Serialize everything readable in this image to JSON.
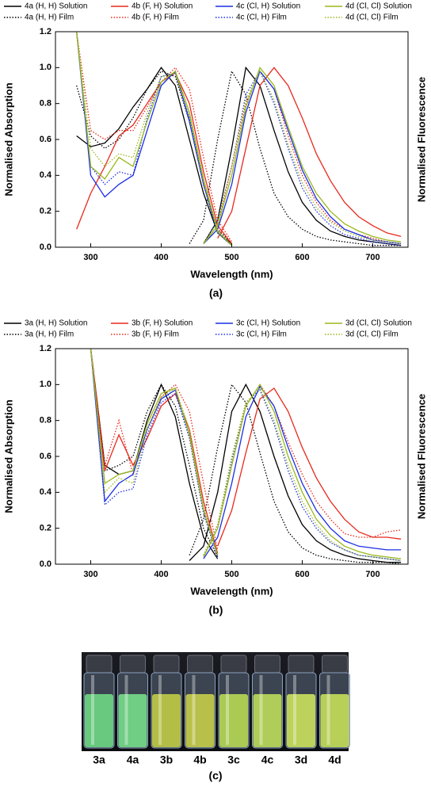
{
  "chart_data": [
    {
      "type": "line",
      "xlabel": "Wavelength (nm)",
      "ylabel": "Normalised Absorption",
      "y2label": "Normalised Fluorescence",
      "caption": "(a)",
      "x": [
        280,
        300,
        320,
        340,
        360,
        380,
        400,
        420,
        440,
        460,
        480,
        500,
        520,
        540,
        560,
        580,
        600,
        620,
        640,
        660,
        680,
        700,
        720,
        740
      ],
      "xlim": [
        250,
        750
      ],
      "xticks": [
        300,
        400,
        500,
        600,
        700
      ],
      "ylim": [
        0,
        1.2
      ],
      "yticks": [
        {
          "value": 0,
          "label": "0.0"
        },
        0.2,
        0.4,
        0.6,
        0.8,
        {
          "value": 1,
          "label": "1.0"
        },
        1.2
      ],
      "series": [
        {
          "name": "4a (H, H) Solution",
          "color": "#000000",
          "dash": "solid",
          "absorption": [
            0.62,
            0.56,
            0.58,
            0.66,
            0.78,
            0.88,
            1.0,
            0.9,
            0.6,
            0.3,
            0.08,
            0.02,
            null,
            null,
            null,
            null,
            null,
            null,
            null,
            null,
            null,
            null,
            null,
            null
          ],
          "fluorescence": [
            null,
            null,
            null,
            null,
            null,
            null,
            null,
            null,
            null,
            0.02,
            0.15,
            0.55,
            1.0,
            0.9,
            0.65,
            0.42,
            0.25,
            0.15,
            0.09,
            0.06,
            0.04,
            0.03,
            0.02,
            0.01
          ]
        },
        {
          "name": "4a (H, H) Film",
          "color": "#000000",
          "dash": "dotted",
          "absorption": [
            0.9,
            0.62,
            0.55,
            0.6,
            0.72,
            0.88,
            0.98,
            0.95,
            0.7,
            0.35,
            0.1,
            0.02,
            null,
            null,
            null,
            null,
            null,
            null,
            null,
            null,
            null,
            null,
            null,
            null
          ],
          "fluorescence": [
            null,
            null,
            null,
            null,
            null,
            null,
            null,
            null,
            0.02,
            0.15,
            0.6,
            0.98,
            0.85,
            0.55,
            0.3,
            0.17,
            0.1,
            0.06,
            0.04,
            0.03,
            0.02,
            0.01,
            0.01,
            0.01
          ]
        },
        {
          "name": "4b (F, H) Solution",
          "color": "#e8291c",
          "dash": "solid",
          "absorption": [
            0.1,
            0.3,
            0.45,
            0.62,
            0.68,
            0.8,
            0.92,
            0.97,
            0.8,
            0.42,
            0.12,
            0.02,
            null,
            null,
            null,
            null,
            null,
            null,
            null,
            null,
            null,
            null,
            null,
            null
          ],
          "fluorescence": [
            null,
            null,
            null,
            null,
            null,
            null,
            null,
            null,
            null,
            null,
            0.05,
            0.2,
            0.55,
            0.9,
            1.0,
            0.9,
            0.72,
            0.52,
            0.37,
            0.25,
            0.17,
            0.12,
            0.08,
            0.06
          ]
        },
        {
          "name": "4b (F, H) Film",
          "color": "#e8291c",
          "dash": "dotted",
          "absorption": [
            1.2,
            0.65,
            0.6,
            0.65,
            0.65,
            0.78,
            0.92,
            1.0,
            0.88,
            0.5,
            0.15,
            0.03,
            null,
            null,
            null,
            null,
            null,
            null,
            null,
            null,
            null,
            null,
            null,
            null
          ],
          "fluorescence": [
            null,
            null,
            null,
            null,
            null,
            null,
            null,
            null,
            null,
            0.02,
            0.12,
            0.45,
            0.8,
            0.98,
            0.88,
            0.62,
            0.4,
            0.25,
            0.15,
            0.1,
            0.07,
            0.05,
            0.03,
            0.02
          ]
        },
        {
          "name": "4c (Cl, H) Solution",
          "color": "#1a2ee6",
          "dash": "solid",
          "absorption": [
            1.2,
            0.4,
            0.28,
            0.35,
            0.4,
            0.65,
            0.9,
            0.98,
            0.7,
            0.35,
            0.08,
            0.01,
            null,
            null,
            null,
            null,
            null,
            null,
            null,
            null,
            null,
            null,
            null,
            null
          ],
          "fluorescence": [
            null,
            null,
            null,
            null,
            null,
            null,
            null,
            null,
            null,
            0.02,
            0.1,
            0.35,
            0.75,
            0.98,
            0.88,
            0.65,
            0.43,
            0.27,
            0.17,
            0.1,
            0.07,
            0.04,
            0.03,
            0.02
          ]
        },
        {
          "name": "4c (Cl, H) Film",
          "color": "#1a2ee6",
          "dash": "dotted",
          "absorption": [
            1.2,
            0.45,
            0.35,
            0.42,
            0.4,
            0.72,
            0.95,
            0.97,
            0.72,
            0.35,
            0.08,
            0.01,
            null,
            null,
            null,
            null,
            null,
            null,
            null,
            null,
            null,
            null,
            null,
            null
          ],
          "fluorescence": [
            null,
            null,
            null,
            null,
            null,
            null,
            null,
            null,
            null,
            0.02,
            0.15,
            0.45,
            0.85,
            0.98,
            0.8,
            0.55,
            0.33,
            0.2,
            0.12,
            0.07,
            0.05,
            0.03,
            0.02,
            0.01
          ]
        },
        {
          "name": "4d (Cl, Cl) Solution",
          "color": "#9ab81e",
          "dash": "solid",
          "absorption": [
            1.2,
            0.45,
            0.38,
            0.5,
            0.45,
            0.7,
            0.92,
            0.98,
            0.75,
            0.38,
            0.09,
            0.01,
            null,
            null,
            null,
            null,
            null,
            null,
            null,
            null,
            null,
            null,
            null,
            null
          ],
          "fluorescence": [
            null,
            null,
            null,
            null,
            null,
            null,
            null,
            null,
            null,
            0.02,
            0.12,
            0.4,
            0.78,
            1.0,
            0.9,
            0.67,
            0.45,
            0.3,
            0.2,
            0.13,
            0.09,
            0.06,
            0.04,
            0.03
          ]
        },
        {
          "name": "4d (Cl, Cl) Film",
          "color": "#9ab81e",
          "dash": "dotted",
          "absorption": [
            1.2,
            0.55,
            0.45,
            0.52,
            0.5,
            0.75,
            0.95,
            0.97,
            0.72,
            0.36,
            0.08,
            0.01,
            null,
            null,
            null,
            null,
            null,
            null,
            null,
            null,
            null,
            null,
            null,
            null
          ],
          "fluorescence": [
            null,
            null,
            null,
            null,
            null,
            null,
            null,
            null,
            null,
            0.02,
            0.14,
            0.45,
            0.82,
            0.98,
            0.82,
            0.57,
            0.36,
            0.22,
            0.14,
            0.09,
            0.06,
            0.04,
            0.03,
            0.02
          ]
        }
      ]
    },
    {
      "type": "line",
      "xlabel": "Wavelength (nm)",
      "ylabel": "Normalised Absorption",
      "y2label": "Normalised Fluorescence",
      "caption": "(b)",
      "x": [
        280,
        300,
        320,
        340,
        360,
        380,
        400,
        420,
        440,
        460,
        480,
        500,
        520,
        540,
        560,
        580,
        600,
        620,
        640,
        660,
        680,
        700,
        720,
        740
      ],
      "xlim": [
        250,
        750
      ],
      "xticks": [
        300,
        400,
        500,
        600,
        700
      ],
      "ylim": [
        0,
        1.2
      ],
      "yticks": [
        {
          "value": 0,
          "label": "0.0"
        },
        0.2,
        0.4,
        0.6,
        0.8,
        {
          "value": 1,
          "label": "1.0"
        },
        1.2
      ],
      "series": [
        {
          "name": "3a (H, H) Solution",
          "color": "#000000",
          "dash": "solid",
          "absorption": [
            null,
            1.2,
            0.55,
            0.5,
            0.52,
            0.8,
            1.0,
            0.82,
            0.45,
            0.15,
            0.03,
            null,
            null,
            null,
            null,
            null,
            null,
            null,
            null,
            null,
            null,
            null,
            null,
            null
          ],
          "fluorescence": [
            null,
            null,
            null,
            null,
            null,
            null,
            null,
            null,
            0.02,
            0.1,
            0.4,
            0.85,
            1.0,
            0.85,
            0.6,
            0.38,
            0.22,
            0.13,
            0.08,
            0.05,
            0.03,
            0.02,
            0.01,
            0.01
          ]
        },
        {
          "name": "3a (H, H) Film",
          "color": "#000000",
          "dash": "dotted",
          "absorption": [
            null,
            1.2,
            0.52,
            0.55,
            0.6,
            0.85,
            1.0,
            0.88,
            0.55,
            0.2,
            0.04,
            null,
            null,
            null,
            null,
            null,
            null,
            null,
            null,
            null,
            null,
            null,
            null,
            null
          ],
          "fluorescence": [
            null,
            null,
            null,
            null,
            null,
            null,
            null,
            null,
            0.05,
            0.25,
            0.65,
            1.0,
            0.9,
            0.62,
            0.35,
            0.18,
            0.09,
            0.05,
            0.03,
            0.02,
            0.01,
            0.01,
            0.01,
            0.0
          ]
        },
        {
          "name": "3b (F, H) Solution",
          "color": "#e8291c",
          "dash": "solid",
          "absorption": [
            null,
            1.2,
            0.52,
            0.72,
            0.55,
            0.7,
            0.88,
            0.95,
            0.75,
            0.35,
            0.06,
            null,
            null,
            null,
            null,
            null,
            null,
            null,
            null,
            null,
            null,
            null,
            null,
            null
          ],
          "fluorescence": [
            null,
            null,
            null,
            null,
            null,
            null,
            null,
            null,
            null,
            null,
            0.1,
            0.3,
            0.62,
            0.92,
            0.98,
            0.85,
            0.65,
            0.48,
            0.35,
            0.25,
            0.18,
            0.15,
            0.15,
            0.14
          ]
        },
        {
          "name": "3b (F, H) Film",
          "color": "#e8291c",
          "dash": "dotted",
          "absorption": [
            null,
            1.2,
            0.55,
            0.8,
            0.5,
            0.75,
            0.93,
            1.0,
            0.85,
            0.45,
            0.08,
            null,
            null,
            null,
            null,
            null,
            null,
            null,
            null,
            null,
            null,
            null,
            null,
            null
          ],
          "fluorescence": [
            null,
            null,
            null,
            null,
            null,
            null,
            null,
            null,
            null,
            0.05,
            0.2,
            0.55,
            0.88,
            1.0,
            0.88,
            0.68,
            0.5,
            0.35,
            0.25,
            0.17,
            0.15,
            0.15,
            0.18,
            0.19
          ]
        },
        {
          "name": "3c (Cl, H) Solution",
          "color": "#1a2ee6",
          "dash": "solid",
          "absorption": [
            null,
            1.2,
            0.35,
            0.45,
            0.5,
            0.75,
            0.92,
            0.97,
            0.72,
            0.3,
            0.05,
            null,
            null,
            null,
            null,
            null,
            null,
            null,
            null,
            null,
            null,
            null,
            null,
            null
          ],
          "fluorescence": [
            null,
            null,
            null,
            null,
            null,
            null,
            null,
            null,
            null,
            0.03,
            0.15,
            0.45,
            0.82,
            0.99,
            0.88,
            0.65,
            0.45,
            0.3,
            0.2,
            0.13,
            0.1,
            0.09,
            0.08,
            0.08
          ]
        },
        {
          "name": "3c (Cl, H) Film",
          "color": "#1a2ee6",
          "dash": "dotted",
          "absorption": [
            null,
            1.2,
            0.33,
            0.4,
            0.42,
            0.72,
            0.9,
            0.95,
            0.7,
            0.28,
            0.04,
            null,
            null,
            null,
            null,
            null,
            null,
            null,
            null,
            null,
            null,
            null,
            null,
            null
          ],
          "fluorescence": [
            null,
            null,
            null,
            null,
            null,
            null,
            null,
            null,
            null,
            0.05,
            0.22,
            0.58,
            0.9,
            0.97,
            0.78,
            0.52,
            0.32,
            0.2,
            0.12,
            0.08,
            0.05,
            0.04,
            0.03,
            0.02
          ]
        },
        {
          "name": "3d (Cl, Cl) Solution",
          "color": "#9ab81e",
          "dash": "solid",
          "absorption": [
            null,
            1.2,
            0.45,
            0.5,
            0.52,
            0.78,
            0.95,
            0.98,
            0.72,
            0.3,
            0.05,
            null,
            null,
            null,
            null,
            null,
            null,
            null,
            null,
            null,
            null,
            null,
            null,
            null
          ],
          "fluorescence": [
            null,
            null,
            null,
            null,
            null,
            null,
            null,
            null,
            null,
            0.04,
            0.2,
            0.55,
            0.88,
            1.0,
            0.85,
            0.6,
            0.4,
            0.25,
            0.16,
            0.1,
            0.07,
            0.05,
            0.04,
            0.03
          ]
        },
        {
          "name": "3d (Cl, Cl) Film",
          "color": "#9ab81e",
          "dash": "dotted",
          "absorption": [
            null,
            1.2,
            0.4,
            0.48,
            0.45,
            0.75,
            0.93,
            0.98,
            0.75,
            0.32,
            0.05,
            null,
            null,
            null,
            null,
            null,
            null,
            null,
            null,
            null,
            null,
            null,
            null,
            null
          ],
          "fluorescence": [
            null,
            null,
            null,
            null,
            null,
            null,
            null,
            null,
            null,
            0.05,
            0.22,
            0.6,
            0.9,
            0.98,
            0.8,
            0.55,
            0.35,
            0.22,
            0.13,
            0.08,
            0.05,
            0.04,
            0.03,
            0.02
          ]
        }
      ]
    }
  ],
  "figure_c": {
    "labels": [
      "3a",
      "4a",
      "3b",
      "4b",
      "3c",
      "4c",
      "3d",
      "4d"
    ],
    "caption": "(c)"
  }
}
